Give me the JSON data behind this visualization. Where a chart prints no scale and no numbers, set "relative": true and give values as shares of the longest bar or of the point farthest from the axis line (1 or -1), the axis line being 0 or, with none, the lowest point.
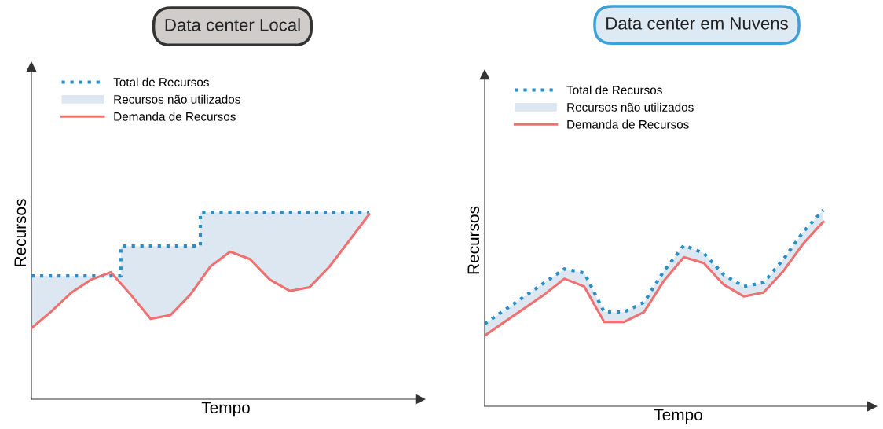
{
  "chart_data": [
    {
      "type": "line",
      "title": "Data center Local",
      "xlabel": "Tempo",
      "ylabel": "Recursos",
      "relative": true,
      "legend": "top left",
      "tick_labels": false,
      "categories": [
        null,
        null,
        null,
        null,
        null,
        null,
        null,
        null,
        null,
        null,
        null,
        null,
        null,
        null,
        null,
        null,
        null,
        null
      ],
      "series": [
        {
          "name": "Total de Recursos",
          "type": "step",
          "line_style": "dotted",
          "color": "#2a8fc7",
          "values": [
            0.66,
            0.66,
            0.66,
            0.66,
            0.66,
            0.82,
            0.82,
            0.82,
            0.82,
            1.0,
            1.0,
            1.0,
            1.0,
            1.0,
            1.0,
            1.0,
            1.0,
            1.0
          ],
          "lower": [
            0.38,
            0.47,
            0.57,
            0.64,
            0.68,
            0.56,
            0.43,
            0.45,
            0.56,
            0.71,
            0.79,
            0.75,
            0.64,
            0.58,
            0.6,
            0.71,
            0.85,
            0.99
          ],
          "upper": [
            0.66,
            0.66,
            0.66,
            0.66,
            0.66,
            0.82,
            0.82,
            0.82,
            0.82,
            1.0,
            1.0,
            1.0,
            1.0,
            1.0,
            1.0,
            1.0,
            1.0,
            1.0
          ]
        },
        {
          "name": "Recursos não utilizados",
          "type": "area",
          "color": "#dde7f1",
          "values": [
            null,
            null,
            null,
            null,
            null,
            null,
            null,
            null,
            null,
            null,
            null,
            null,
            null,
            null,
            null,
            null,
            null,
            null
          ]
        },
        {
          "name": "Demanda de Recursos",
          "line_style": "solid",
          "color": "#f07070",
          "values": [
            0.38,
            0.47,
            0.57,
            0.64,
            0.68,
            0.56,
            0.43,
            0.45,
            0.56,
            0.71,
            0.79,
            0.75,
            0.64,
            0.58,
            0.6,
            0.71,
            0.85,
            0.99
          ]
        }
      ]
    },
    {
      "type": "line",
      "title": "Data center em Nuvens",
      "xlabel": "Tempo",
      "ylabel": "Recursos",
      "relative": true,
      "legend": "top left",
      "tick_labels": false,
      "categories": [
        null,
        null,
        null,
        null,
        null,
        null,
        null,
        null,
        null,
        null,
        null,
        null,
        null,
        null,
        null,
        null,
        null,
        null
      ],
      "series": [
        {
          "name": "Total de Recursos",
          "line_style": "dotted",
          "color": "#2a8fc7",
          "values": [
            0.42,
            0.49,
            0.56,
            0.63,
            0.7,
            0.68,
            0.48,
            0.48,
            0.53,
            0.69,
            0.82,
            0.78,
            0.67,
            0.61,
            0.63,
            0.75,
            0.89,
            1.0
          ],
          "lower": [
            0.36,
            0.43,
            0.5,
            0.57,
            0.65,
            0.61,
            0.43,
            0.43,
            0.48,
            0.64,
            0.76,
            0.73,
            0.62,
            0.56,
            0.58,
            0.69,
            0.83,
            0.94
          ],
          "upper": [
            0.42,
            0.49,
            0.56,
            0.63,
            0.7,
            0.68,
            0.48,
            0.48,
            0.53,
            0.69,
            0.82,
            0.78,
            0.67,
            0.61,
            0.63,
            0.75,
            0.89,
            1.0
          ]
        },
        {
          "name": "Recursos não utilizados",
          "type": "area",
          "color": "#dde7f1",
          "values": [
            null,
            null,
            null,
            null,
            null,
            null,
            null,
            null,
            null,
            null,
            null,
            null,
            null,
            null,
            null,
            null,
            null,
            null
          ]
        },
        {
          "name": "Demanda de Recursos",
          "line_style": "solid",
          "color": "#f07070",
          "values": [
            0.36,
            0.43,
            0.5,
            0.57,
            0.65,
            0.61,
            0.43,
            0.43,
            0.48,
            0.64,
            0.76,
            0.73,
            0.62,
            0.56,
            0.58,
            0.69,
            0.83,
            0.94
          ]
        }
      ]
    }
  ]
}
